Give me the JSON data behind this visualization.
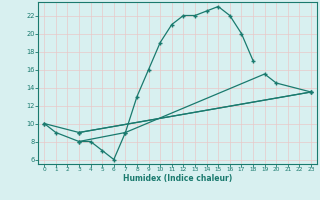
{
  "xlabel": "Humidex (Indice chaleur)",
  "line_color": "#1a7a6e",
  "bg_color": "#d8f0f0",
  "grid_color": "#c8e8e8",
  "xlim": [
    -0.5,
    23.5
  ],
  "ylim": [
    5.5,
    23.5
  ],
  "xticks": [
    0,
    1,
    2,
    3,
    4,
    5,
    6,
    7,
    8,
    9,
    10,
    11,
    12,
    13,
    14,
    15,
    16,
    17,
    18,
    19,
    20,
    21,
    22,
    23
  ],
  "yticks": [
    6,
    8,
    10,
    12,
    14,
    16,
    18,
    20,
    22
  ],
  "line1_x": [
    0,
    1,
    3,
    4,
    5,
    6,
    7,
    8,
    9,
    10,
    11,
    12,
    13,
    14,
    15,
    16,
    17,
    18
  ],
  "line1_y": [
    10,
    9,
    8,
    8,
    7,
    6,
    9,
    13,
    16,
    19,
    21,
    22,
    22,
    22.5,
    23,
    22,
    20,
    17
  ],
  "line2_x": [
    0,
    3,
    23
  ],
  "line2_y": [
    10,
    9,
    13.5
  ],
  "line3_x": [
    3,
    23
  ],
  "line3_y": [
    9,
    13.5
  ],
  "line4_x": [
    3,
    7,
    19,
    20,
    23
  ],
  "line4_y": [
    8,
    9,
    15.5,
    14.5,
    13.5
  ]
}
